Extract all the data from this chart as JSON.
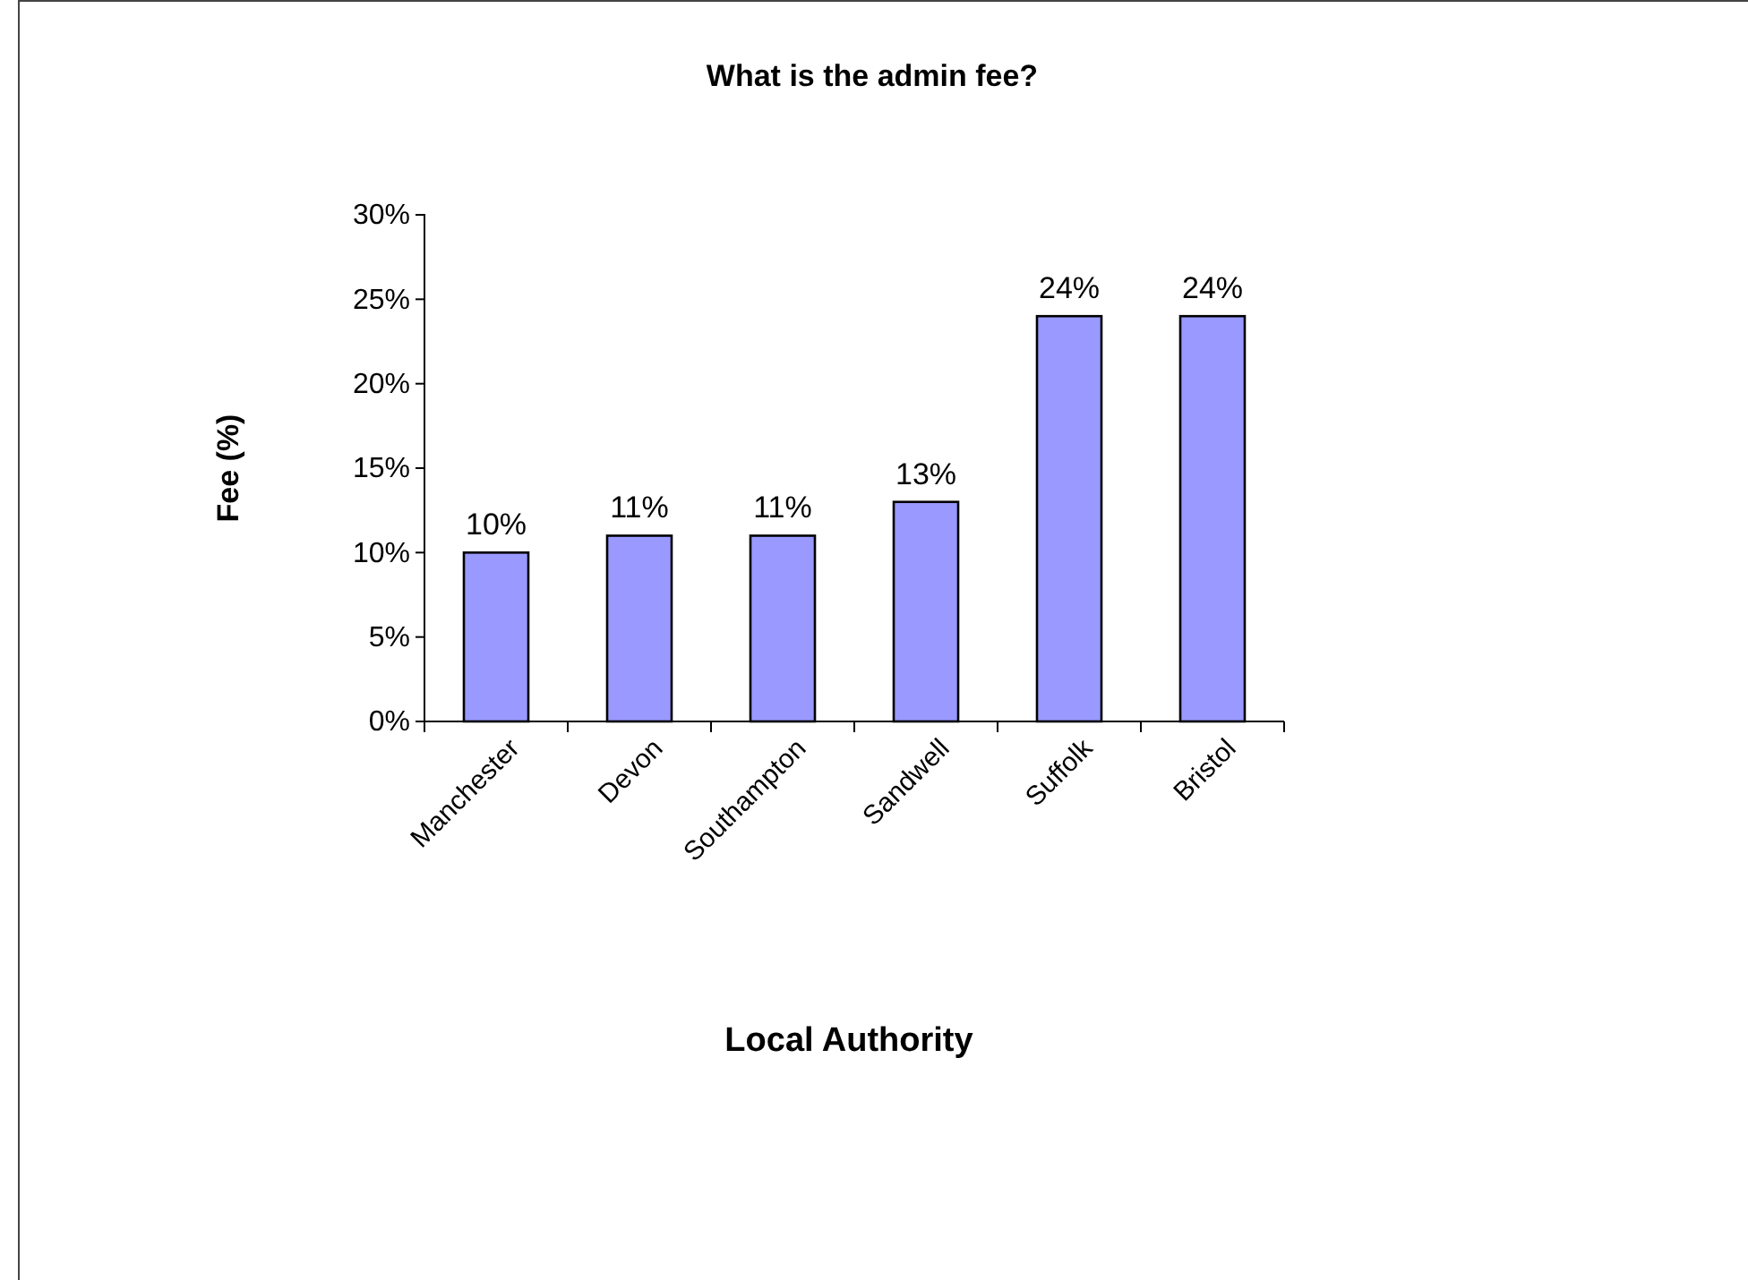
{
  "chart_data": {
    "type": "bar",
    "title": "What is the admin fee?",
    "xlabel": "Local Authority",
    "ylabel": "Fee (%)",
    "categories": [
      "Manchester",
      "Devon",
      "Southampton",
      "Sandwell",
      "Suffolk",
      "Bristol"
    ],
    "values": [
      10,
      11,
      11,
      13,
      24,
      24
    ],
    "value_labels": [
      "10%",
      "11%",
      "11%",
      "13%",
      "24%",
      "24%"
    ],
    "color": "#9999ff",
    "ylim": [
      0,
      30
    ],
    "yticks": [
      {
        "value": 0,
        "label": "0%"
      },
      {
        "value": 5,
        "label": "5%"
      },
      {
        "value": 10,
        "label": "10%"
      },
      {
        "value": 15,
        "label": "15%"
      },
      {
        "value": 20,
        "label": "20%"
      },
      {
        "value": 25,
        "label": "25%"
      },
      {
        "value": 30,
        "label": "30%"
      }
    ],
    "grid": false
  }
}
